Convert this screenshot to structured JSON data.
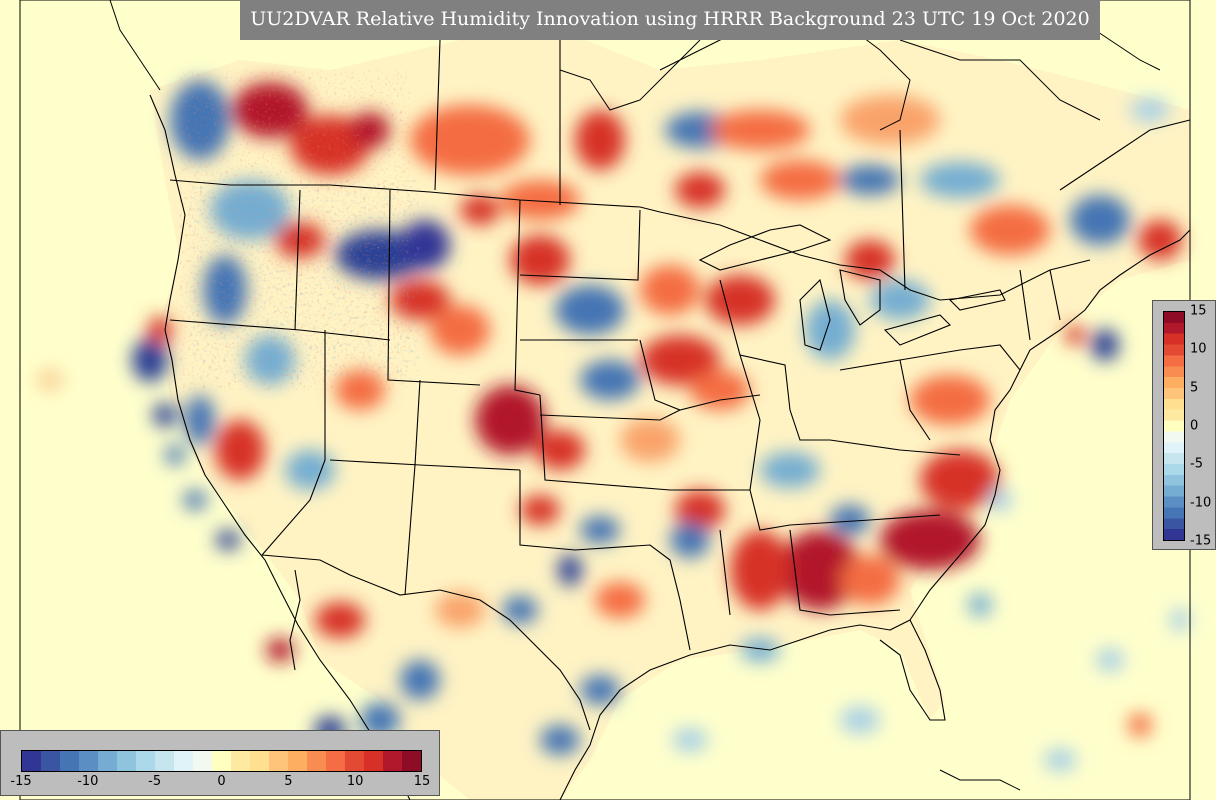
{
  "title": "UU2DVAR Relative Humidity Innovation using HRRR Background 23 UTC 19 Oct 2020",
  "colorbar_vertical": {
    "min": -15,
    "max": 15,
    "ticks": [
      "15",
      "10",
      "5",
      "0",
      "-5",
      "-10",
      "-15"
    ]
  },
  "colorbar_horizontal": {
    "min": -15,
    "max": 15,
    "ticks": [
      "-15",
      "-10",
      "-5",
      "0",
      "5",
      "10",
      "15"
    ]
  },
  "colors": {
    "ocean_background": "#ffffcc",
    "land_neutral": "#fff2c2",
    "positive_strong": "#b2182b",
    "positive_medium": "#e85a3a",
    "positive_light": "#f4a26a",
    "negative_strong": "#2c3f94",
    "negative_medium": "#4c7dbc",
    "negative_light": "#a9d0e6"
  }
}
